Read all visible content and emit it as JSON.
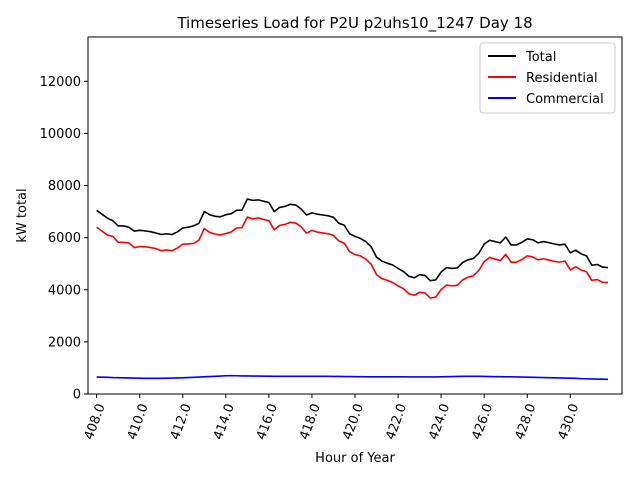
{
  "chart_data": {
    "type": "line",
    "title": "Timeseries Load for P2U p2uhs10_1247  Day 18",
    "xlabel": "Hour of Year",
    "ylabel": "kW total",
    "xlim": [
      407.6,
      432.4
    ],
    "ylim": [
      0,
      13700
    ],
    "xticks": [
      408.0,
      410.0,
      412.0,
      414.0,
      416.0,
      418.0,
      420.0,
      422.0,
      424.0,
      426.0,
      428.0,
      430.0
    ],
    "xtick_labels": [
      "408.0",
      "410.0",
      "412.0",
      "414.0",
      "416.0",
      "418.0",
      "420.0",
      "422.0",
      "424.0",
      "426.0",
      "428.0",
      "430.0"
    ],
    "yticks": [
      0,
      2000,
      4000,
      6000,
      8000,
      10000,
      12000
    ],
    "ytick_labels": [
      "0",
      "2000",
      "4000",
      "6000",
      "8000",
      "10000",
      "12000"
    ],
    "grid": false,
    "legend_position": "top-right",
    "x": [
      408.0,
      408.25,
      408.5,
      408.75,
      409.0,
      409.25,
      409.5,
      409.75,
      410.0,
      410.25,
      410.5,
      410.75,
      411.0,
      411.25,
      411.5,
      411.75,
      412.0,
      412.25,
      412.5,
      412.75,
      413.0,
      413.25,
      413.5,
      413.75,
      414.0,
      414.25,
      414.5,
      414.75,
      415.0,
      415.25,
      415.5,
      415.75,
      416.0,
      416.25,
      416.5,
      416.75,
      417.0,
      417.25,
      417.5,
      417.75,
      418.0,
      418.25,
      418.5,
      418.75,
      419.0,
      419.25,
      419.5,
      419.75,
      420.0,
      420.25,
      420.5,
      420.75,
      421.0,
      421.25,
      421.5,
      421.75,
      422.0,
      422.25,
      422.5,
      422.75,
      423.0,
      423.25,
      423.5,
      423.75,
      424.0,
      424.25,
      424.5,
      424.75,
      425.0,
      425.25,
      425.5,
      425.75,
      426.0,
      426.25,
      426.5,
      426.75,
      427.0,
      427.25,
      427.5,
      427.75,
      428.0,
      428.25,
      428.5,
      428.75,
      429.0,
      429.25,
      429.5,
      429.75,
      430.0,
      430.25,
      430.5,
      430.75,
      431.0,
      431.25,
      431.5,
      431.75
    ],
    "series": [
      {
        "name": "Total",
        "color": "#000000",
        "values": [
          7050,
          6900,
          6750,
          6650,
          6450,
          6450,
          6400,
          6250,
          6280,
          6260,
          6230,
          6180,
          6120,
          6150,
          6120,
          6220,
          6370,
          6400,
          6450,
          6550,
          7000,
          6880,
          6820,
          6800,
          6880,
          6920,
          7050,
          7060,
          7480,
          7430,
          7450,
          7400,
          7350,
          7000,
          7160,
          7200,
          7280,
          7250,
          7100,
          6870,
          6950,
          6900,
          6870,
          6840,
          6780,
          6550,
          6480,
          6150,
          6050,
          5970,
          5850,
          5650,
          5250,
          5100,
          5020,
          4950,
          4820,
          4700,
          4520,
          4460,
          4580,
          4550,
          4350,
          4380,
          4680,
          4850,
          4820,
          4840,
          5050,
          5150,
          5200,
          5400,
          5750,
          5900,
          5850,
          5800,
          6020,
          5720,
          5720,
          5820,
          5950,
          5920,
          5800,
          5850,
          5810,
          5760,
          5720,
          5750,
          5420,
          5520,
          5380,
          5300,
          4940,
          4970,
          4870,
          4850
        ]
      },
      {
        "name": "Residential",
        "color": "#ff0000",
        "values": [
          6400,
          6250,
          6100,
          6050,
          5820,
          5820,
          5800,
          5620,
          5660,
          5650,
          5620,
          5580,
          5500,
          5530,
          5500,
          5600,
          5750,
          5760,
          5780,
          5900,
          6350,
          6200,
          6140,
          6100,
          6160,
          6220,
          6370,
          6380,
          6790,
          6720,
          6760,
          6700,
          6650,
          6300,
          6470,
          6510,
          6590,
          6560,
          6420,
          6170,
          6280,
          6210,
          6180,
          6150,
          6090,
          5870,
          5790,
          5460,
          5350,
          5300,
          5180,
          4980,
          4580,
          4430,
          4360,
          4280,
          4150,
          4040,
          3850,
          3790,
          3900,
          3880,
          3680,
          3720,
          4010,
          4180,
          4150,
          4170,
          4380,
          4480,
          4540,
          4740,
          5080,
          5240,
          5180,
          5120,
          5360,
          5060,
          5060,
          5160,
          5300,
          5260,
          5150,
          5190,
          5140,
          5090,
          5060,
          5100,
          4760,
          4880,
          4760,
          4690,
          4360,
          4390,
          4280,
          4280
        ]
      },
      {
        "name": "Commercial",
        "color": "#0000ff",
        "values": [
          650,
          645,
          640,
          630,
          625,
          620,
          615,
          610,
          605,
          600,
          600,
          600,
          600,
          605,
          610,
          615,
          620,
          630,
          640,
          650,
          660,
          670,
          680,
          690,
          700,
          705,
          700,
          695,
          695,
          690,
          690,
          685,
          685,
          680,
          680,
          680,
          680,
          680,
          680,
          680,
          680,
          680,
          680,
          680,
          675,
          675,
          670,
          670,
          665,
          665,
          660,
          660,
          660,
          660,
          660,
          660,
          660,
          660,
          655,
          655,
          655,
          655,
          655,
          655,
          660,
          665,
          670,
          675,
          680,
          680,
          680,
          680,
          675,
          670,
          665,
          665,
          660,
          660,
          655,
          650,
          645,
          640,
          635,
          630,
          625,
          620,
          615,
          610,
          605,
          600,
          590,
          585,
          580,
          575,
          570,
          565
        ]
      }
    ]
  }
}
